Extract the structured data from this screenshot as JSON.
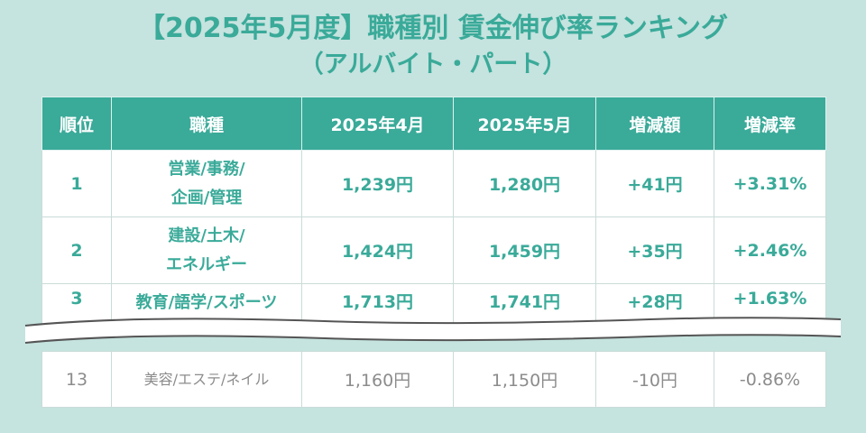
{
  "title": {
    "line1": "【2025年5月度】職種別 賃金伸び率ランキング",
    "line2": "（アルバイト・パート）"
  },
  "table": {
    "headers": [
      "順位",
      "職種",
      "2025年4月",
      "2025年5月",
      "増減額",
      "増減率"
    ],
    "rows": [
      {
        "rank": "1",
        "job_line1": "営業/事務/",
        "job_line2": "企画/管理",
        "apr": "1,239円",
        "may": "1,280円",
        "diff": "+41円",
        "rate": "+3.31%"
      },
      {
        "rank": "2",
        "job_line1": "建設/土木/",
        "job_line2": "エネルギー",
        "apr": "1,424円",
        "may": "1,459円",
        "diff": "+35円",
        "rate": "+2.46%"
      },
      {
        "rank": "3",
        "job_line1": "教育/語学/スポーツ",
        "apr": "1,713円",
        "may": "1,741円",
        "diff": "+28円",
        "rate": "+1.63%"
      },
      {
        "rank": "13",
        "job_line1": "美容/エステ/ネイル",
        "apr": "1,160円",
        "may": "1,150円",
        "diff": "-10円",
        "rate": "-0.86%"
      }
    ]
  },
  "colors": {
    "background": "#c5e3df",
    "accent": "#3aaa99",
    "muted_text": "#8c8c8c"
  }
}
